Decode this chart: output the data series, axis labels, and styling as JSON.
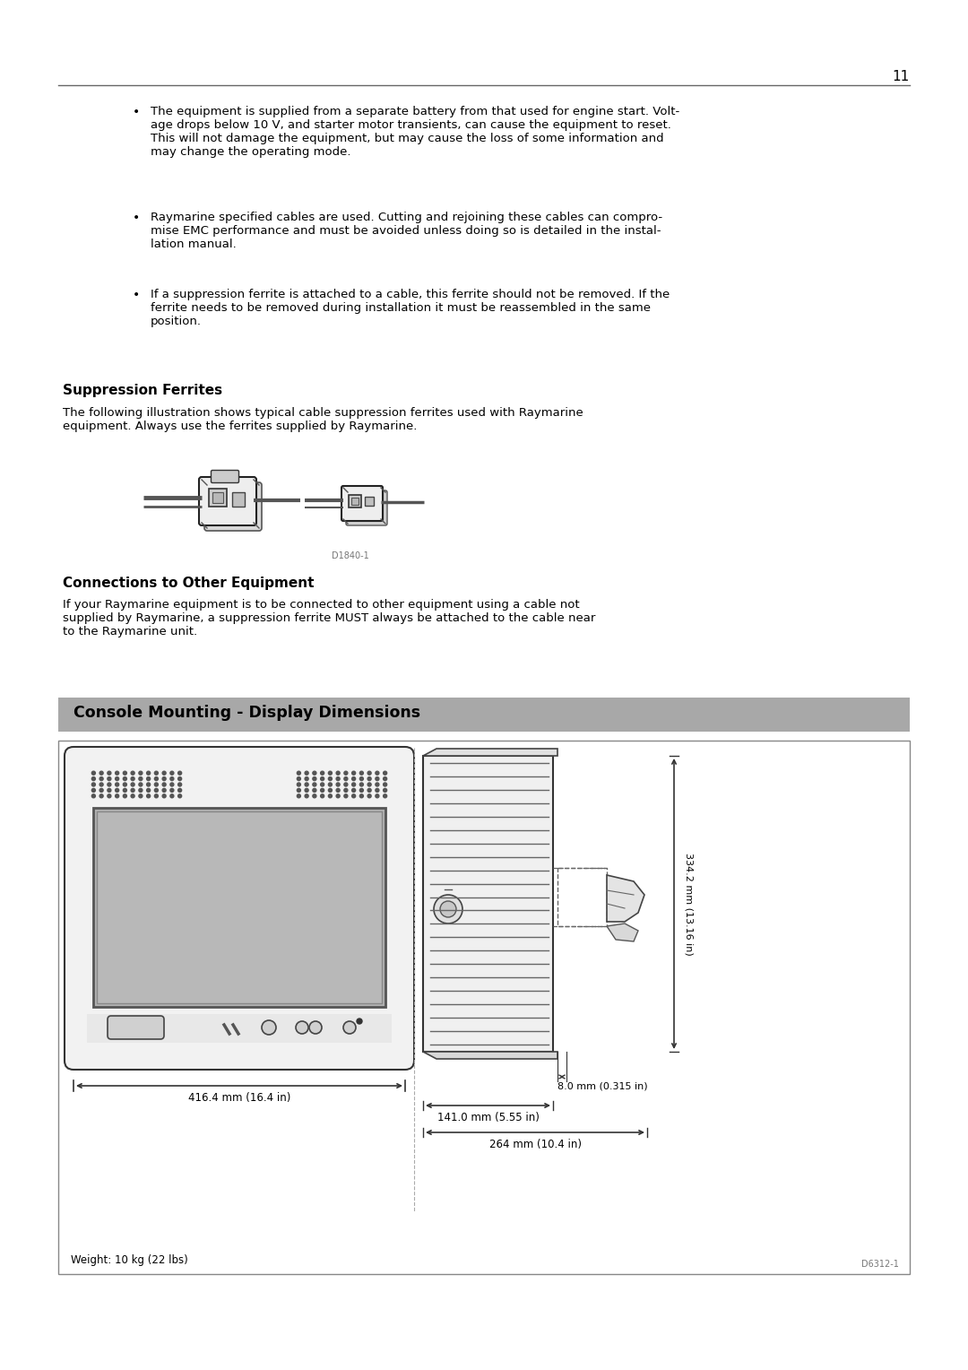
{
  "page_number": "11",
  "background_color": "#ffffff",
  "text_color": "#000000",
  "section1_title": "Suppression Ferrites",
  "section1_body": "The following illustration shows typical cable suppression ferrites used with Raymarine\nequipment. Always use the ferrites supplied by Raymarine.",
  "ferrite_caption": "D1840-1",
  "section2_title": "Connections to Other Equipment",
  "section2_body": "If your Raymarine equipment is to be connected to other equipment using a cable not\nsupplied by Raymarine, a suppression ferrite MUST always be attached to the cable near\nto the Raymarine unit.",
  "section3_title": "Console Mounting - Display Dimensions",
  "section3_header_bg": "#a8a8a8",
  "dim_width": "416.4 mm (16.4 in)",
  "dim_height": "334.2 mm (13.16 in)",
  "dim_depth": "141.0 mm (5.55 in)",
  "dim_mount": "8.0 mm (0.315 in)",
  "dim_total": "264 mm (10.4 in)",
  "dim_weight": "Weight: 10 kg (22 lbs)",
  "diagram_ref": "D6312-1",
  "bullet1": "The equipment is supplied from a separate battery from that used for engine start. Volt-\nage drops below 10 V, and starter motor transients, can cause the equipment to reset.\nThis will not damage the equipment, but may cause the loss of some information and\nmay change the operating mode.",
  "bullet2": "Raymarine specified cables are used. Cutting and rejoining these cables can compro-\nmise EMC performance and must be avoided unless doing so is detailed in the instal-\nlation manual.",
  "bullet3": "If a suppression ferrite is attached to a cable, this ferrite should not be removed. If the\nferrite needs to be removed during installation it must be reassembled in the same\nposition."
}
